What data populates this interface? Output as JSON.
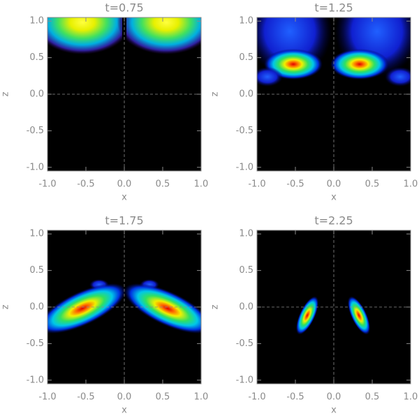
{
  "chart_data": [
    {
      "type": "contour",
      "title": "t=0.75",
      "xlabel": "x",
      "ylabel": "z",
      "xlim": [
        -1,
        1
      ],
      "ylim": [
        -1.05,
        1.05
      ],
      "xticks": [
        {
          "value": -1,
          "label": "-1.0"
        },
        {
          "value": -0.5,
          "label": "-0.5"
        },
        {
          "value": 0,
          "label": "0.0"
        },
        {
          "value": 0.5,
          "label": "0.5"
        },
        {
          "value": 1,
          "label": "1.0"
        }
      ],
      "yticks": [
        {
          "value": -1,
          "label": "-1.0"
        },
        {
          "value": -0.5,
          "label": "-0.5"
        },
        {
          "value": 0,
          "label": "0.0"
        },
        {
          "value": 0.5,
          "label": "0.5"
        },
        {
          "value": 1,
          "label": "1.0"
        }
      ]
    },
    {
      "type": "contour",
      "title": "t=1.25",
      "xlabel": "x",
      "ylabel": "z",
      "xlim": [
        -1,
        1
      ],
      "ylim": [
        -1.05,
        1.05
      ],
      "xticks": [
        {
          "value": -1,
          "label": "-1.0"
        },
        {
          "value": -0.5,
          "label": "-0.5"
        },
        {
          "value": 0,
          "label": "0.0"
        },
        {
          "value": 0.5,
          "label": "0.5"
        },
        {
          "value": 1,
          "label": "1.0"
        }
      ],
      "yticks": [
        {
          "value": -1,
          "label": "-1.0"
        },
        {
          "value": -0.5,
          "label": "-0.5"
        },
        {
          "value": 0,
          "label": "0.0"
        },
        {
          "value": 0.5,
          "label": "0.5"
        },
        {
          "value": 1,
          "label": "1.0"
        }
      ]
    },
    {
      "type": "contour",
      "title": "t=1.75",
      "xlabel": "x",
      "ylabel": "z",
      "xlim": [
        -1,
        1
      ],
      "ylim": [
        -1.05,
        1.05
      ],
      "xticks": [
        {
          "value": -1,
          "label": "-1.0"
        },
        {
          "value": -0.5,
          "label": "-0.5"
        },
        {
          "value": 0,
          "label": "0.0"
        },
        {
          "value": 0.5,
          "label": "0.5"
        },
        {
          "value": 1,
          "label": "1.0"
        }
      ],
      "yticks": [
        {
          "value": -1,
          "label": "-1.0"
        },
        {
          "value": -0.5,
          "label": "-0.5"
        },
        {
          "value": 0,
          "label": "0.0"
        },
        {
          "value": 0.5,
          "label": "0.5"
        },
        {
          "value": 1,
          "label": "1.0"
        }
      ]
    },
    {
      "type": "contour",
      "title": "t=2.25",
      "xlabel": "x",
      "ylabel": "z",
      "xlim": [
        -1,
        1
      ],
      "ylim": [
        -1.05,
        1.05
      ],
      "xticks": [
        {
          "value": -1,
          "label": "-1.0"
        },
        {
          "value": -0.5,
          "label": "-0.5"
        },
        {
          "value": 0,
          "label": "0.0"
        },
        {
          "value": 0.5,
          "label": "0.5"
        },
        {
          "value": 1,
          "label": "1.0"
        }
      ],
      "yticks": [
        {
          "value": -1,
          "label": "-1.0"
        },
        {
          "value": -0.5,
          "label": "-0.5"
        },
        {
          "value": 0,
          "label": "0.0"
        },
        {
          "value": 0.5,
          "label": "0.5"
        },
        {
          "value": 1,
          "label": "1.0"
        }
      ]
    }
  ]
}
